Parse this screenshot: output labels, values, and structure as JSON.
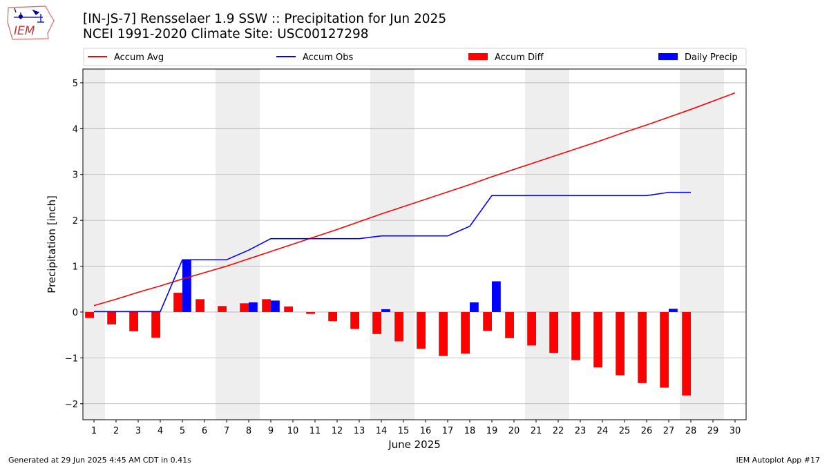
{
  "header": {
    "title_line1": "[IN-JS-7] Rensselaer 1.9 SSW :: Precipitation for Jun 2025",
    "title_line2": "NCEI 1991-2020 Climate Site: USC00127298",
    "logo_text": "IEM"
  },
  "footer": {
    "generated": "Generated at 29 Jun 2025 4:45 AM CDT in 0.41s",
    "app": "IEM Autoplot App #17"
  },
  "chart_data": {
    "type": "bar",
    "xlabel": "June 2025",
    "ylabel": "Precipitation [inch]",
    "xlim": [
      0.5,
      30.5
    ],
    "ylim": [
      -2.35,
      5.3
    ],
    "yticks": [
      -2,
      -1,
      0,
      1,
      2,
      3,
      4,
      5
    ],
    "grid": true,
    "legend_position": "top",
    "weekend_shading": [
      [
        0.5,
        1.5
      ],
      [
        6.5,
        8.5
      ],
      [
        13.5,
        15.5
      ],
      [
        20.5,
        22.5
      ],
      [
        27.5,
        29.5
      ]
    ],
    "days": [
      1,
      2,
      3,
      4,
      5,
      6,
      7,
      8,
      9,
      10,
      11,
      12,
      13,
      14,
      15,
      16,
      17,
      18,
      19,
      20,
      21,
      22,
      23,
      24,
      25,
      26,
      27,
      28,
      29,
      30
    ],
    "series": [
      {
        "name": "Accum Avg",
        "kind": "line",
        "color": "#ff0000",
        "x": [
          1,
          2,
          3,
          4,
          5,
          6,
          7,
          8,
          9,
          10,
          11,
          12,
          13,
          14,
          15,
          16,
          17,
          18,
          19,
          20,
          21,
          22,
          23,
          24,
          25,
          26,
          27,
          28,
          29,
          30
        ],
        "values": [
          0.14,
          0.28,
          0.43,
          0.57,
          0.72,
          0.86,
          1.0,
          1.16,
          1.32,
          1.48,
          1.64,
          1.8,
          1.97,
          2.14,
          2.3,
          2.46,
          2.62,
          2.78,
          2.95,
          3.11,
          3.27,
          3.43,
          3.59,
          3.75,
          3.92,
          4.08,
          4.25,
          4.42,
          4.6,
          4.78
        ]
      },
      {
        "name": "Accum Obs",
        "kind": "line",
        "color": "#0000ff",
        "x": [
          1,
          2,
          3,
          4,
          5,
          6,
          7,
          8,
          9,
          10,
          11,
          12,
          13,
          14,
          15,
          16,
          17,
          18,
          19,
          20,
          21,
          22,
          23,
          24,
          25,
          26,
          27,
          28
        ],
        "values": [
          0.01,
          0.01,
          0.01,
          0.01,
          1.14,
          1.14,
          1.14,
          1.35,
          1.6,
          1.6,
          1.6,
          1.6,
          1.6,
          1.66,
          1.66,
          1.66,
          1.66,
          1.87,
          2.54,
          2.54,
          2.54,
          2.54,
          2.54,
          2.54,
          2.54,
          2.54,
          2.61,
          2.61
        ]
      },
      {
        "name": "Accum Diff",
        "kind": "bar",
        "color": "#ff0000",
        "x": [
          1,
          2,
          3,
          4,
          5,
          6,
          7,
          8,
          9,
          10,
          11,
          12,
          13,
          14,
          15,
          16,
          17,
          18,
          19,
          20,
          21,
          22,
          23,
          24,
          25,
          26,
          27,
          28
        ],
        "values": [
          -0.13,
          -0.27,
          -0.42,
          -0.56,
          0.42,
          0.28,
          0.13,
          0.19,
          0.28,
          0.12,
          -0.04,
          -0.2,
          -0.37,
          -0.48,
          -0.64,
          -0.8,
          -0.96,
          -0.91,
          -0.41,
          -0.57,
          -0.73,
          -0.89,
          -1.05,
          -1.21,
          -1.38,
          -1.55,
          -1.65,
          -1.82
        ]
      },
      {
        "name": "Daily Precip",
        "kind": "bar",
        "color": "#0000ff",
        "x": [
          1,
          2,
          3,
          4,
          5,
          6,
          7,
          8,
          9,
          10,
          11,
          12,
          13,
          14,
          15,
          16,
          17,
          18,
          19,
          20,
          21,
          22,
          23,
          24,
          25,
          26,
          27,
          28
        ],
        "values": [
          0.01,
          0,
          0,
          0,
          1.13,
          0,
          0,
          0.21,
          0.25,
          0,
          0,
          0,
          0,
          0.06,
          0,
          0,
          0,
          0.21,
          0.67,
          0,
          0,
          0,
          0,
          0,
          0,
          0,
          0.07,
          0
        ]
      }
    ]
  }
}
